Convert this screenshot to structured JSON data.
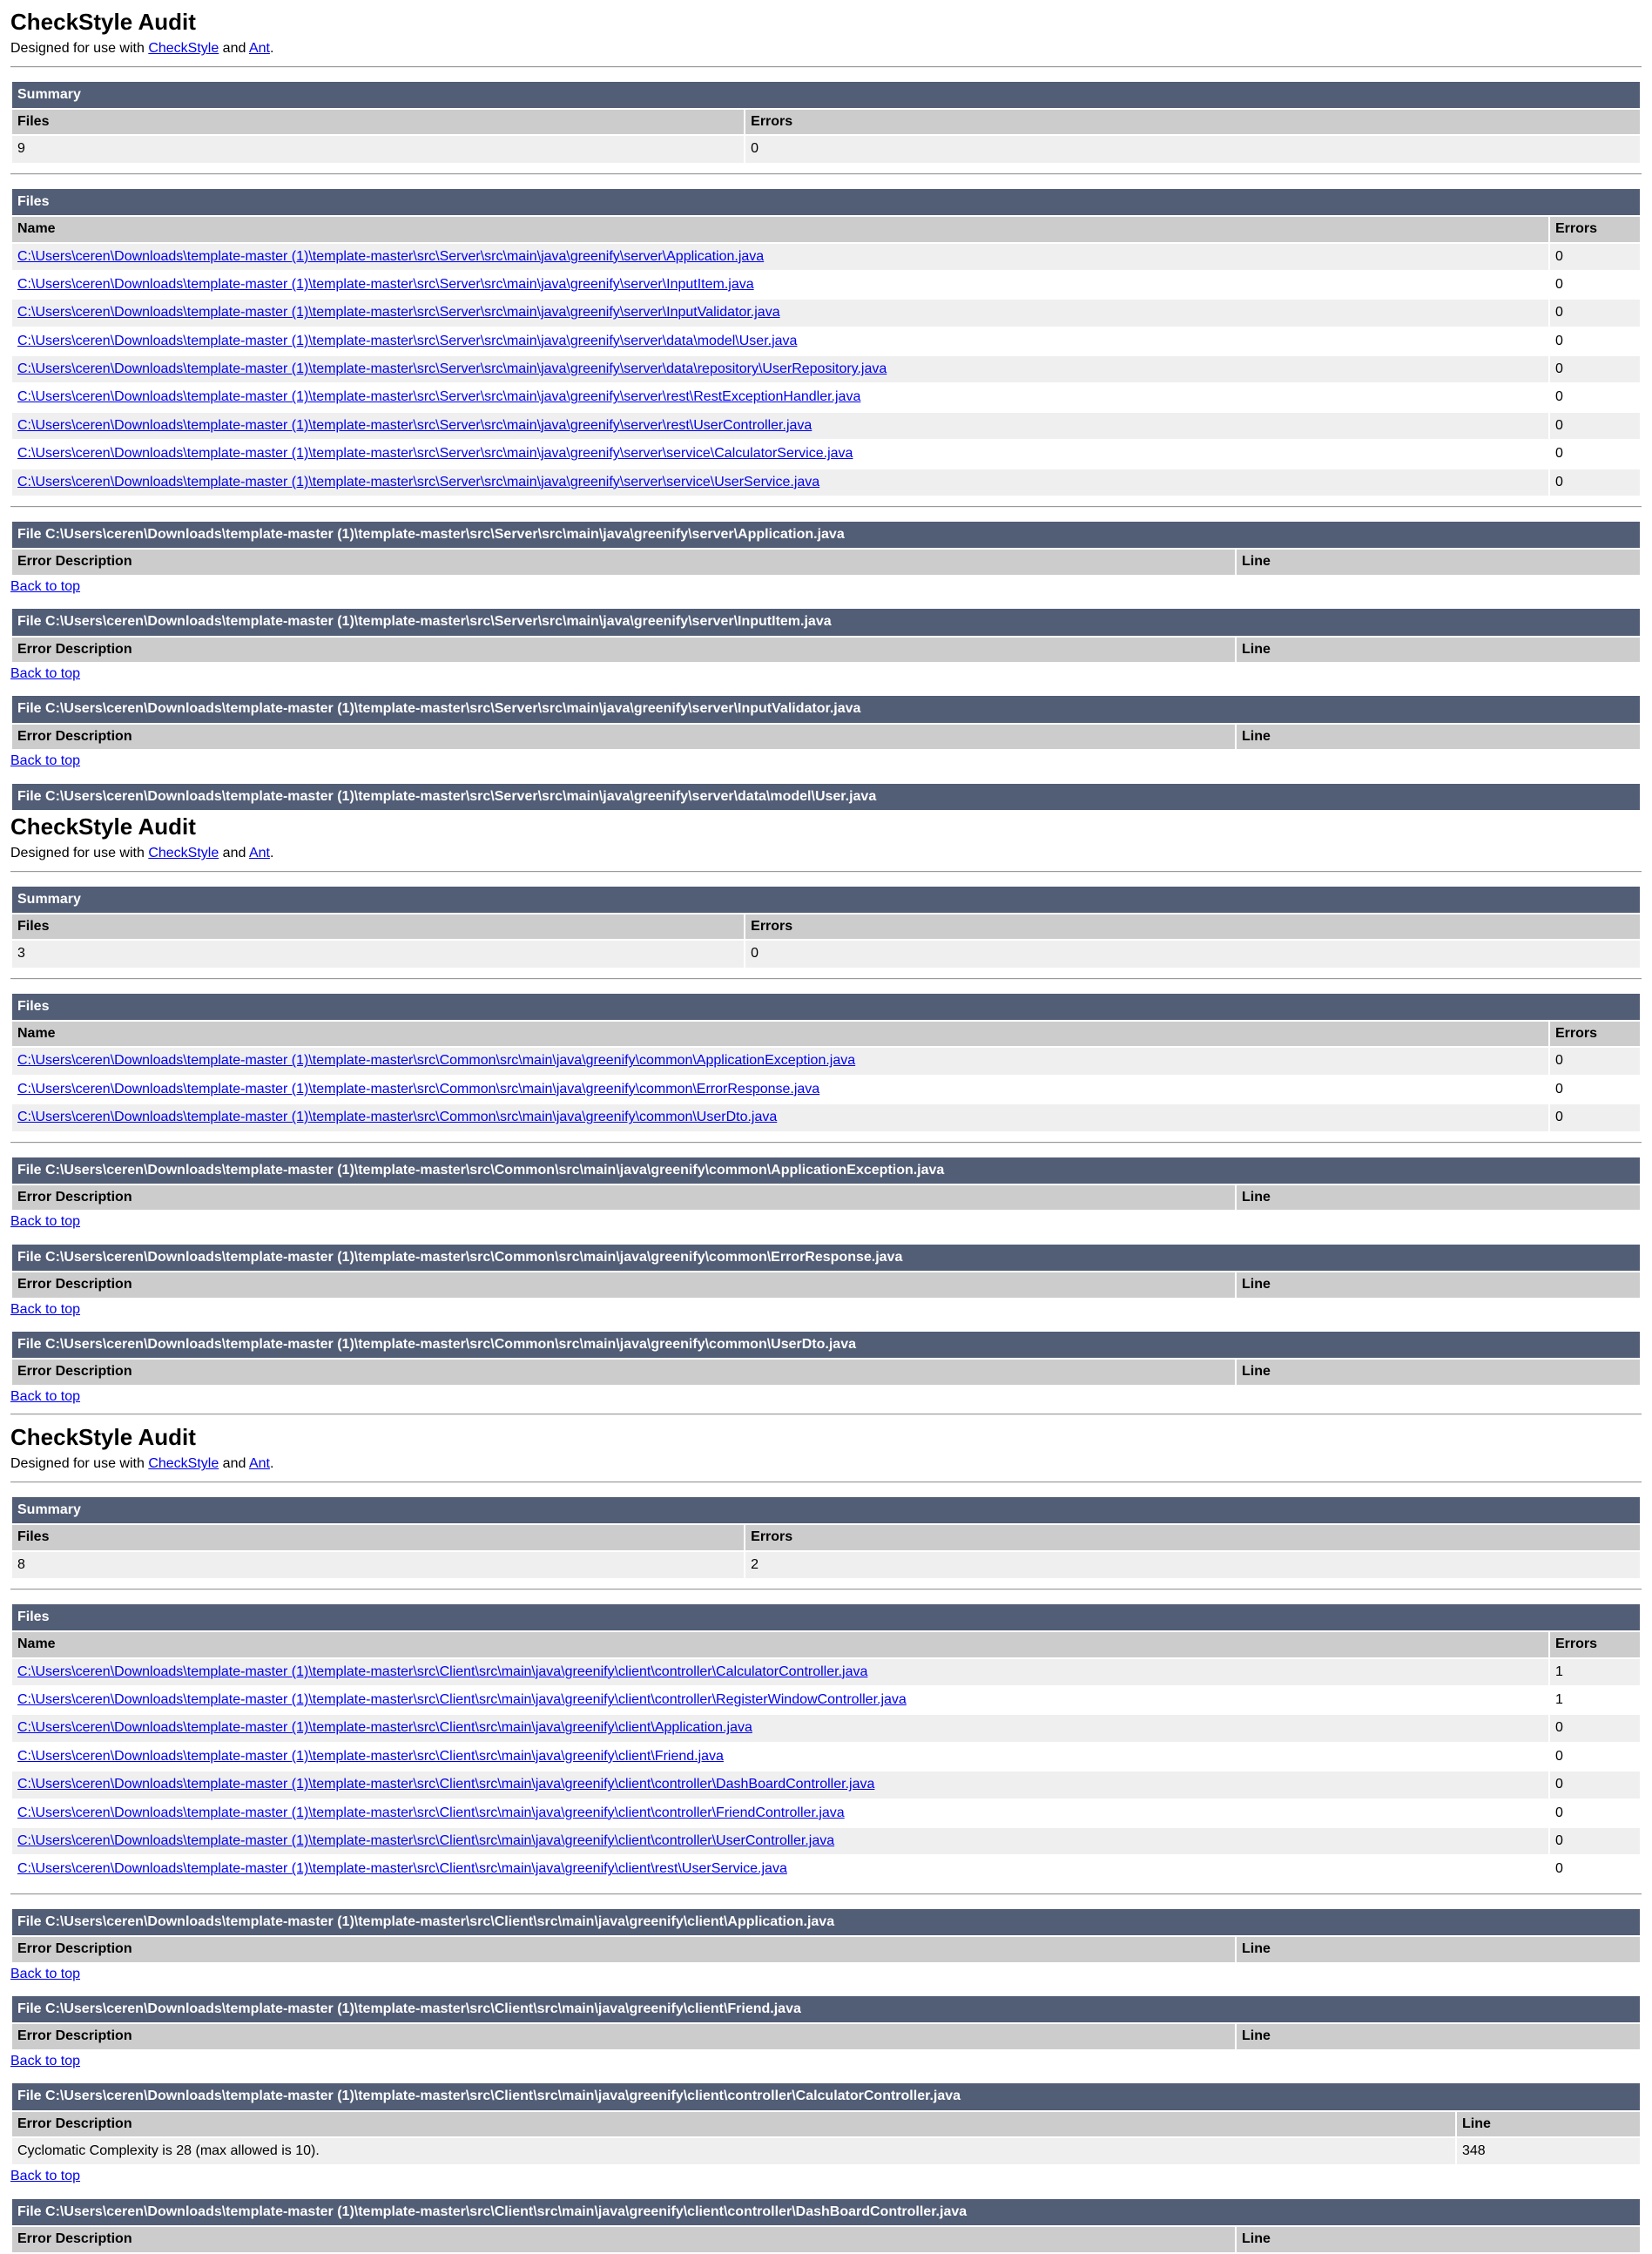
{
  "strings": {
    "title": "CheckStyle Audit",
    "designed_prefix": "Designed for use with ",
    "checkstyle_link": "CheckStyle",
    "and_text": " and ",
    "ant_link": "Ant",
    "period": ".",
    "back_to_top": "Back to top"
  },
  "labels": {
    "summary": "Summary",
    "files": "Files",
    "name": "Name",
    "errors": "Errors",
    "error_description": "Error Description",
    "line": "Line"
  },
  "colors": {
    "section_header_bg": "#525D76",
    "section_header_text": "#ffffff",
    "table_header_bg": "#cccccc",
    "row_alt_bg": "#efefef",
    "row_bg": "#ffffff",
    "link": "#0000EE"
  },
  "reports": [
    {
      "summary": {
        "files": "9",
        "errors": "0"
      },
      "files": [
        {
          "name": "C:\\Users\\ceren\\Downloads\\template-master (1)\\template-master\\src\\Server\\src\\main\\java\\greenify\\server\\Application.java",
          "errors": "0"
        },
        {
          "name": "C:\\Users\\ceren\\Downloads\\template-master (1)\\template-master\\src\\Server\\src\\main\\java\\greenify\\server\\InputItem.java",
          "errors": "0"
        },
        {
          "name": "C:\\Users\\ceren\\Downloads\\template-master (1)\\template-master\\src\\Server\\src\\main\\java\\greenify\\server\\InputValidator.java",
          "errors": "0"
        },
        {
          "name": "C:\\Users\\ceren\\Downloads\\template-master (1)\\template-master\\src\\Server\\src\\main\\java\\greenify\\server\\data\\model\\User.java",
          "errors": "0"
        },
        {
          "name": "C:\\Users\\ceren\\Downloads\\template-master (1)\\template-master\\src\\Server\\src\\main\\java\\greenify\\server\\data\\repository\\UserRepository.java",
          "errors": "0"
        },
        {
          "name": "C:\\Users\\ceren\\Downloads\\template-master (1)\\template-master\\src\\Server\\src\\main\\java\\greenify\\server\\rest\\RestExceptionHandler.java",
          "errors": "0"
        },
        {
          "name": "C:\\Users\\ceren\\Downloads\\template-master (1)\\template-master\\src\\Server\\src\\main\\java\\greenify\\server\\rest\\UserController.java",
          "errors": "0"
        },
        {
          "name": "C:\\Users\\ceren\\Downloads\\template-master (1)\\template-master\\src\\Server\\src\\main\\java\\greenify\\server\\service\\CalculatorService.java",
          "errors": "0"
        },
        {
          "name": "C:\\Users\\ceren\\Downloads\\template-master (1)\\template-master\\src\\Server\\src\\main\\java\\greenify\\server\\service\\UserService.java",
          "errors": "0"
        }
      ],
      "sections": [
        {
          "title": "File C:\\Users\\ceren\\Downloads\\template-master (1)\\template-master\\src\\Server\\src\\main\\java\\greenify\\server\\Application.java"
        },
        {
          "title": "File C:\\Users\\ceren\\Downloads\\template-master (1)\\template-master\\src\\Server\\src\\main\\java\\greenify\\server\\InputItem.java"
        },
        {
          "title": "File C:\\Users\\ceren\\Downloads\\template-master (1)\\template-master\\src\\Server\\src\\main\\java\\greenify\\server\\InputValidator.java"
        },
        {
          "title": "File C:\\Users\\ceren\\Downloads\\template-master (1)\\template-master\\src\\Server\\src\\main\\java\\greenify\\server\\data\\model\\User.java"
        }
      ]
    },
    {
      "summary": {
        "files": "3",
        "errors": "0"
      },
      "files": [
        {
          "name": "C:\\Users\\ceren\\Downloads\\template-master (1)\\template-master\\src\\Common\\src\\main\\java\\greenify\\common\\ApplicationException.java",
          "errors": "0"
        },
        {
          "name": "C:\\Users\\ceren\\Downloads\\template-master (1)\\template-master\\src\\Common\\src\\main\\java\\greenify\\common\\ErrorResponse.java",
          "errors": "0"
        },
        {
          "name": "C:\\Users\\ceren\\Downloads\\template-master (1)\\template-master\\src\\Common\\src\\main\\java\\greenify\\common\\UserDto.java",
          "errors": "0"
        }
      ],
      "sections": [
        {
          "title": "File C:\\Users\\ceren\\Downloads\\template-master (1)\\template-master\\src\\Common\\src\\main\\java\\greenify\\common\\ApplicationException.java"
        },
        {
          "title": "File C:\\Users\\ceren\\Downloads\\template-master (1)\\template-master\\src\\Common\\src\\main\\java\\greenify\\common\\ErrorResponse.java"
        },
        {
          "title": "File C:\\Users\\ceren\\Downloads\\template-master (1)\\template-master\\src\\Common\\src\\main\\java\\greenify\\common\\UserDto.java"
        }
      ]
    },
    {
      "summary": {
        "files": "8",
        "errors": "2"
      },
      "files": [
        {
          "name": "C:\\Users\\ceren\\Downloads\\template-master (1)\\template-master\\src\\Client\\src\\main\\java\\greenify\\client\\controller\\CalculatorController.java",
          "errors": "1"
        },
        {
          "name": "C:\\Users\\ceren\\Downloads\\template-master (1)\\template-master\\src\\Client\\src\\main\\java\\greenify\\client\\controller\\RegisterWindowController.java",
          "errors": "1"
        },
        {
          "name": "C:\\Users\\ceren\\Downloads\\template-master (1)\\template-master\\src\\Client\\src\\main\\java\\greenify\\client\\Application.java",
          "errors": "0"
        },
        {
          "name": "C:\\Users\\ceren\\Downloads\\template-master (1)\\template-master\\src\\Client\\src\\main\\java\\greenify\\client\\Friend.java",
          "errors": "0"
        },
        {
          "name": "C:\\Users\\ceren\\Downloads\\template-master (1)\\template-master\\src\\Client\\src\\main\\java\\greenify\\client\\controller\\DashBoardController.java",
          "errors": "0"
        },
        {
          "name": "C:\\Users\\ceren\\Downloads\\template-master (1)\\template-master\\src\\Client\\src\\main\\java\\greenify\\client\\controller\\FriendController.java",
          "errors": "0"
        },
        {
          "name": "C:\\Users\\ceren\\Downloads\\template-master (1)\\template-master\\src\\Client\\src\\main\\java\\greenify\\client\\controller\\UserController.java",
          "errors": "0"
        },
        {
          "name": "C:\\Users\\ceren\\Downloads\\template-master (1)\\template-master\\src\\Client\\src\\main\\java\\greenify\\client\\rest\\UserService.java",
          "errors": "0"
        }
      ],
      "sections": [
        {
          "title": "File C:\\Users\\ceren\\Downloads\\template-master (1)\\template-master\\src\\Client\\src\\main\\java\\greenify\\client\\Application.java"
        },
        {
          "title": "File C:\\Users\\ceren\\Downloads\\template-master (1)\\template-master\\src\\Client\\src\\main\\java\\greenify\\client\\Friend.java"
        },
        {
          "title": "File C:\\Users\\ceren\\Downloads\\template-master (1)\\template-master\\src\\Client\\src\\main\\java\\greenify\\client\\controller\\CalculatorController.java",
          "errors": [
            {
              "description": "Cyclomatic Complexity is 28 (max allowed is 10).",
              "line": "348"
            }
          ]
        },
        {
          "title": "File C:\\Users\\ceren\\Downloads\\template-master (1)\\template-master\\src\\Client\\src\\main\\java\\greenify\\client\\controller\\DashBoardController.java"
        }
      ]
    }
  ]
}
